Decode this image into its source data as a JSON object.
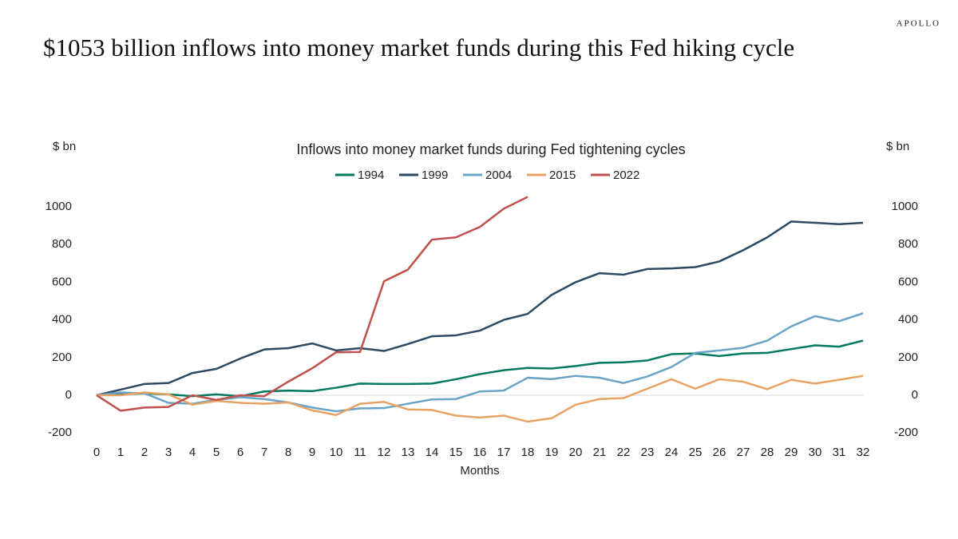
{
  "brand": "APOLLO",
  "headline": "$1053 billion inflows into money market funds during this Fed hiking cycle",
  "chart_data": {
    "type": "line",
    "title": "Inflows into money market funds during Fed tightening cycles",
    "xlabel": "Months",
    "ylabel": "$ bn",
    "y2label": "$ bn",
    "x": [
      0,
      1,
      2,
      3,
      4,
      5,
      6,
      7,
      8,
      9,
      10,
      11,
      12,
      13,
      14,
      15,
      16,
      17,
      18,
      19,
      20,
      21,
      22,
      23,
      24,
      25,
      26,
      27,
      28,
      29,
      30,
      31,
      32
    ],
    "xlim": [
      0,
      32
    ],
    "xticks": [
      0,
      1,
      2,
      3,
      4,
      5,
      6,
      7,
      8,
      9,
      10,
      11,
      12,
      13,
      14,
      15,
      16,
      17,
      18,
      19,
      20,
      21,
      22,
      23,
      24,
      25,
      26,
      27,
      28,
      29,
      30,
      31,
      32
    ],
    "ylim": [
      -200,
      1100
    ],
    "yticks": [
      -200,
      0,
      200,
      400,
      600,
      800,
      1000
    ],
    "y2lim": [
      -200,
      1100
    ],
    "y2ticks": [
      -200,
      0,
      200,
      400,
      600,
      800,
      1000
    ],
    "grid": false,
    "legend": "top",
    "series": [
      {
        "name": "1994",
        "color": "#007a5e",
        "values": [
          0,
          5,
          10,
          5,
          -5,
          5,
          -5,
          20,
          25,
          22,
          40,
          62,
          60,
          60,
          62,
          85,
          112,
          133,
          145,
          142,
          155,
          172,
          175,
          185,
          218,
          222,
          208,
          222,
          225,
          245,
          265,
          258,
          290
        ]
      },
      {
        "name": "1999",
        "color": "#2e4a63",
        "values": [
          0,
          30,
          60,
          65,
          118,
          140,
          195,
          243,
          250,
          275,
          238,
          250,
          235,
          272,
          313,
          318,
          343,
          400,
          432,
          533,
          600,
          648,
          640,
          670,
          673,
          680,
          710,
          770,
          838,
          922,
          915,
          908,
          915
        ]
      },
      {
        "name": "2004",
        "color": "#6aa3c8",
        "values": [
          0,
          15,
          10,
          -40,
          -45,
          -25,
          -10,
          -20,
          -38,
          -65,
          -85,
          -70,
          -68,
          -45,
          -22,
          -20,
          20,
          25,
          93,
          86,
          103,
          93,
          65,
          100,
          150,
          225,
          238,
          252,
          290,
          365,
          420,
          393,
          435
        ]
      },
      {
        "name": "2015",
        "color": "#e8a264",
        "values": [
          0,
          0,
          15,
          5,
          -50,
          -30,
          -40,
          -45,
          -38,
          -80,
          -105,
          -45,
          -35,
          -75,
          -78,
          -108,
          -118,
          -108,
          -140,
          -122,
          -50,
          -20,
          -15,
          35,
          85,
          35,
          85,
          72,
          32,
          82,
          62,
          82,
          103
        ]
      },
      {
        "name": "2022",
        "color": "#c0504d",
        "values": [
          0,
          -82,
          -65,
          -62,
          0,
          -25,
          0,
          -5,
          72,
          143,
          228,
          230,
          605,
          667,
          826,
          838,
          893,
          990,
          1053,
          null,
          null,
          null,
          null,
          null,
          null,
          null,
          null,
          null,
          null,
          null,
          null,
          null,
          null
        ]
      }
    ]
  }
}
